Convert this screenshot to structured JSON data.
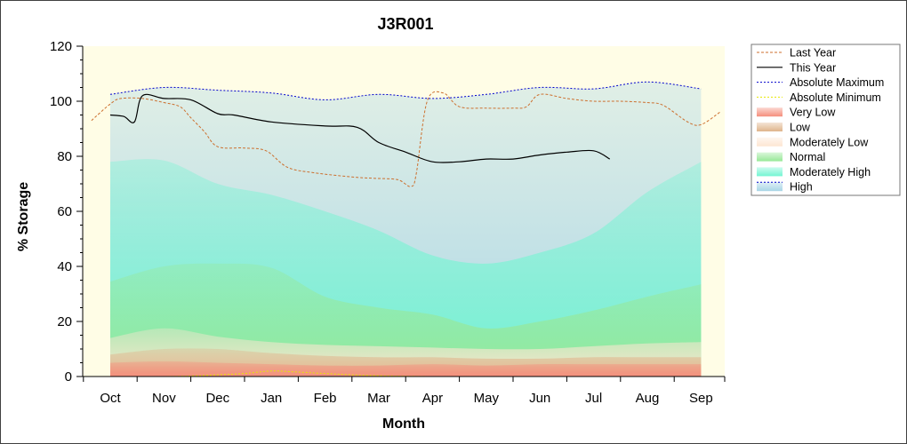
{
  "chart_data": {
    "type": "area",
    "title": "J3R001",
    "xlabel": "Month",
    "ylabel": "% Storage",
    "ylim": [
      0,
      120
    ],
    "yticks": [
      "0",
      "20",
      "40",
      "60",
      "80",
      "100",
      "120"
    ],
    "categories": [
      "Oct",
      "Nov",
      "Dec",
      "Jan",
      "Feb",
      "Mar",
      "Apr",
      "May",
      "Jun",
      "Jul",
      "Aug",
      "Sep"
    ],
    "x_band_positions": [
      0,
      1,
      2,
      3,
      4,
      5,
      6,
      7,
      8,
      9,
      10,
      11
    ],
    "bands": [
      {
        "name": "Very Low",
        "color": "#f58e7c",
        "x": [
          0,
          1,
          2,
          3,
          4,
          5,
          6,
          7,
          8,
          9,
          10,
          11
        ],
        "upper": [
          5,
          5.5,
          5,
          4.5,
          4,
          4,
          4.5,
          4,
          4.5,
          4.5,
          4.5,
          4.5
        ]
      },
      {
        "name": "Low",
        "color": "#dfb48b",
        "x": [
          0,
          1,
          2,
          3,
          4,
          5,
          6,
          7,
          8,
          9,
          10,
          11
        ],
        "upper": [
          8,
          10,
          10,
          8.5,
          7.5,
          7,
          7,
          6.5,
          6.5,
          7,
          7,
          7
        ]
      },
      {
        "name": "Moderately Low",
        "color": "#fde6d2",
        "x": [
          0,
          1,
          2,
          3,
          4,
          5,
          6,
          7,
          8,
          9,
          10,
          11
        ],
        "upper": [
          14,
          17.5,
          14.5,
          12.5,
          11.5,
          11,
          10.5,
          10,
          10,
          11,
          12,
          12.5
        ]
      },
      {
        "name": "Normal",
        "color": "#97e897",
        "x": [
          0,
          1,
          2,
          3,
          4,
          5,
          6,
          7,
          8,
          9,
          10,
          11
        ],
        "upper": [
          34.5,
          40,
          41,
          39.5,
          29,
          25,
          22.5,
          17.5,
          20,
          24,
          29,
          33.5
        ]
      },
      {
        "name": "Moderately High",
        "color": "#74f5d2",
        "x": [
          0,
          1,
          2,
          3,
          4,
          5,
          6,
          7,
          8,
          9,
          10,
          11
        ],
        "upper": [
          78,
          78.5,
          70,
          66,
          60,
          53,
          44,
          41,
          45,
          52,
          67,
          78
        ]
      },
      {
        "name": "High",
        "color": "#a8d5e6",
        "x": [
          0,
          1,
          2,
          3,
          4,
          5,
          6,
          7,
          8,
          9,
          10,
          11
        ],
        "upper": [
          102.5,
          105,
          104,
          103,
          100.5,
          102.5,
          101,
          102.5,
          105,
          104.5,
          107,
          104.5
        ]
      }
    ],
    "series": [
      {
        "name": "Last Year",
        "style": "dashed",
        "color": "#cc6f2e",
        "x": [
          -0.35,
          0,
          0.2,
          0.6,
          1.0,
          1.3,
          1.5,
          1.75,
          2.0,
          2.5,
          2.9,
          3.3,
          3.8,
          4.5,
          4.9,
          5.35,
          5.6,
          5.7,
          5.9,
          6.2,
          6.5,
          7.0,
          7.5,
          7.75,
          8.0,
          8.5,
          9.0,
          9.5,
          10.0,
          10.3,
          10.75,
          11.0,
          11.35
        ],
        "y": [
          93,
          99,
          101,
          101,
          99.5,
          98,
          94,
          89,
          83.5,
          83,
          82,
          76,
          74,
          72.5,
          72,
          71.5,
          69,
          74,
          100,
          103,
          98,
          97.5,
          97.5,
          98,
          102.5,
          101,
          100,
          100,
          99.5,
          98.5,
          92.5,
          91.5,
          96
        ]
      },
      {
        "name": "This Year",
        "style": "solid",
        "color": "#000000",
        "x": [
          0,
          0.25,
          0.45,
          0.6,
          1.0,
          1.5,
          2.0,
          2.3,
          3.0,
          4.0,
          4.6,
          5.0,
          5.5,
          6.0,
          6.5,
          7.0,
          7.5,
          8.0,
          8.5,
          9.0,
          9.3
        ],
        "y": [
          95,
          94.5,
          92.5,
          102,
          101,
          100.5,
          95.5,
          95,
          92.5,
          91,
          90.5,
          85,
          81.5,
          78,
          78,
          79,
          79,
          80.5,
          81.5,
          82,
          79
        ]
      },
      {
        "name": "Absolute Maximum",
        "style": "dotted",
        "color": "#0000cc",
        "x": [
          0,
          1,
          2,
          3,
          4,
          5,
          6,
          7,
          8,
          9,
          10,
          11
        ],
        "y": [
          102.5,
          105,
          104,
          103,
          100.5,
          102.5,
          101,
          102.5,
          105,
          104.5,
          107,
          104.5
        ]
      },
      {
        "name": "Absolute Minimum",
        "style": "dotted",
        "color": "#e8e800",
        "x": [
          0,
          0.5,
          1,
          1.5,
          2,
          2.5,
          3,
          3.5,
          4,
          4.5,
          5,
          5.5,
          6,
          7,
          8,
          9,
          10,
          11
        ],
        "y": [
          0,
          0,
          0,
          0.2,
          0.6,
          1.1,
          2.0,
          1.6,
          1.1,
          0.6,
          0.3,
          0.1,
          0,
          0,
          0,
          0,
          0,
          0
        ]
      }
    ],
    "legend": [
      "Last Year",
      "This Year",
      "Absolute Maximum",
      "Absolute Minimum",
      "Very Low",
      "Low",
      "Moderately Low",
      "Normal",
      "Moderately High",
      "High"
    ],
    "legend_position": "right",
    "colors": {
      "plot_background": "#fffde6",
      "axis": "#000000"
    }
  }
}
